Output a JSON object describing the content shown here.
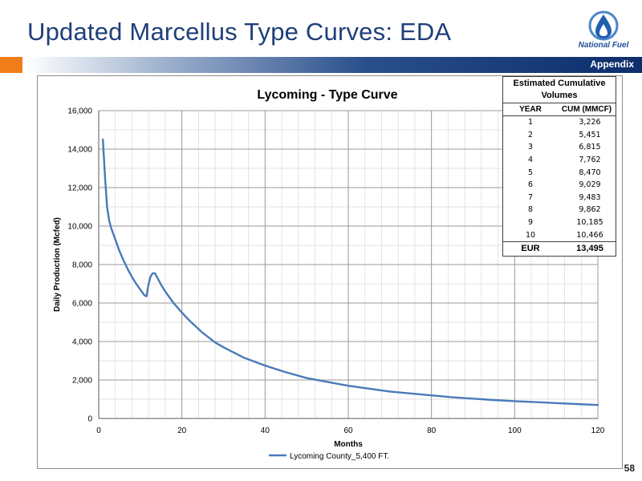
{
  "slide": {
    "title": "Updated Marcellus Type Curves: EDA",
    "section_label": "Appendix",
    "page_number": "58",
    "logo_text": "National Fuel"
  },
  "colors": {
    "title": "#1f3f7a",
    "accent_orange": "#f07d1a",
    "band_blue": "#0d2d6b",
    "series_line": "#4a7ab8"
  },
  "chart_data": {
    "type": "line",
    "title": "Lycoming - Type Curve",
    "xlabel": "Months",
    "ylabel": "Daily Production (Mcfed)",
    "xlim": [
      0,
      120
    ],
    "ylim": [
      0,
      16000
    ],
    "x_ticks": [
      0,
      20,
      40,
      60,
      80,
      100,
      120
    ],
    "y_ticks": [
      0,
      2000,
      4000,
      6000,
      8000,
      10000,
      12000,
      14000,
      16000
    ],
    "x_tick_labels": [
      "0",
      "20",
      "40",
      "60",
      "80",
      "100",
      "120"
    ],
    "y_tick_labels": [
      "0",
      "2,000",
      "4,000",
      "6,000",
      "8,000",
      "10,000",
      "12,000",
      "14,000",
      "16,000"
    ],
    "grid": true,
    "legend_position": "bottom",
    "series": [
      {
        "name": "Lycoming County_5,400 FT.",
        "x": [
          1,
          1.5,
          2,
          2.5,
          3,
          4,
          5,
          6,
          7,
          8,
          9,
          10,
          11,
          11.5,
          12,
          12.5,
          13,
          13.5,
          14,
          15,
          16,
          18,
          20,
          22,
          25,
          28,
          30,
          35,
          40,
          45,
          50,
          55,
          60,
          65,
          70,
          75,
          80,
          85,
          90,
          95,
          100,
          105,
          110,
          115,
          120
        ],
        "y": [
          14500,
          12600,
          11000,
          10300,
          9900,
          9300,
          8700,
          8200,
          7750,
          7350,
          7000,
          6700,
          6400,
          6350,
          7000,
          7400,
          7550,
          7550,
          7350,
          6950,
          6600,
          6000,
          5500,
          5050,
          4450,
          3950,
          3700,
          3150,
          2750,
          2400,
          2100,
          1900,
          1700,
          1550,
          1400,
          1300,
          1200,
          1100,
          1030,
          960,
          900,
          850,
          800,
          750,
          700
        ]
      }
    ]
  },
  "table": {
    "title": "Estimated Cumulative Volumes",
    "headers": [
      "YEAR",
      "CUM (MMCF)"
    ],
    "rows": [
      [
        "1",
        "3,226"
      ],
      [
        "2",
        "5,451"
      ],
      [
        "3",
        "6,815"
      ],
      [
        "4",
        "7,762"
      ],
      [
        "5",
        "8,470"
      ],
      [
        "6",
        "9,029"
      ],
      [
        "7",
        "9,483"
      ],
      [
        "8",
        "9,862"
      ],
      [
        "9",
        "10,185"
      ],
      [
        "10",
        "10,466"
      ]
    ],
    "eur_label": "EUR",
    "eur_value": "13,495"
  }
}
